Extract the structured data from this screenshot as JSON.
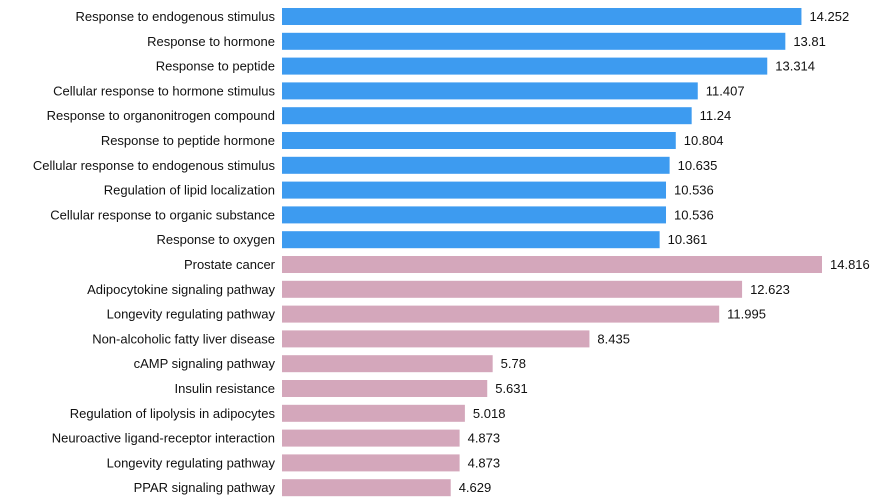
{
  "chart_data": {
    "type": "bar",
    "orientation": "horizontal",
    "title": "",
    "xlabel": "",
    "ylabel": "",
    "grid": false,
    "legend": "none",
    "xlim": [
      0,
      14.816
    ],
    "colors": {
      "group_a": "#3d9bf0",
      "group_b": "#d4a7bb"
    },
    "categories": [
      "Response to endogenous stimulus",
      "Response to hormone",
      "Response to peptide",
      "Cellular response to hormone stimulus",
      "Response to organonitrogen compound",
      "Response to peptide hormone",
      "Cellular response to endogenous stimulus",
      "Regulation of lipid localization",
      "Cellular response to organic substance",
      "Response to oxygen",
      "Prostate cancer",
      "Adipocytokine signaling pathway",
      "Longevity regulating pathway",
      "Non-alcoholic fatty liver disease",
      "cAMP signaling pathway",
      "Insulin resistance",
      "Regulation of lipolysis in adipocytes",
      "Neuroactive ligand-receptor interaction",
      "Longevity regulating pathway",
      "PPAR signaling pathway"
    ],
    "values": [
      14.252,
      13.81,
      13.314,
      11.407,
      11.24,
      10.804,
      10.635,
      10.536,
      10.536,
      10.361,
      14.816,
      12.623,
      11.995,
      8.435,
      5.78,
      5.631,
      5.018,
      4.873,
      4.873,
      4.629
    ],
    "value_labels": [
      "14.252",
      "13.81",
      "13.314",
      "11.407",
      "11.24",
      "10.804",
      "10.635",
      "10.536",
      "10.536",
      "10.361",
      "14.816",
      "12.623",
      "11.995",
      "8.435",
      "5.78",
      "5.631",
      "5.018",
      "4.873",
      "4.873",
      "4.629"
    ],
    "groups": [
      "group_a",
      "group_a",
      "group_a",
      "group_a",
      "group_a",
      "group_a",
      "group_a",
      "group_a",
      "group_a",
      "group_a",
      "group_b",
      "group_b",
      "group_b",
      "group_b",
      "group_b",
      "group_b",
      "group_b",
      "group_b",
      "group_b",
      "group_b"
    ]
  }
}
